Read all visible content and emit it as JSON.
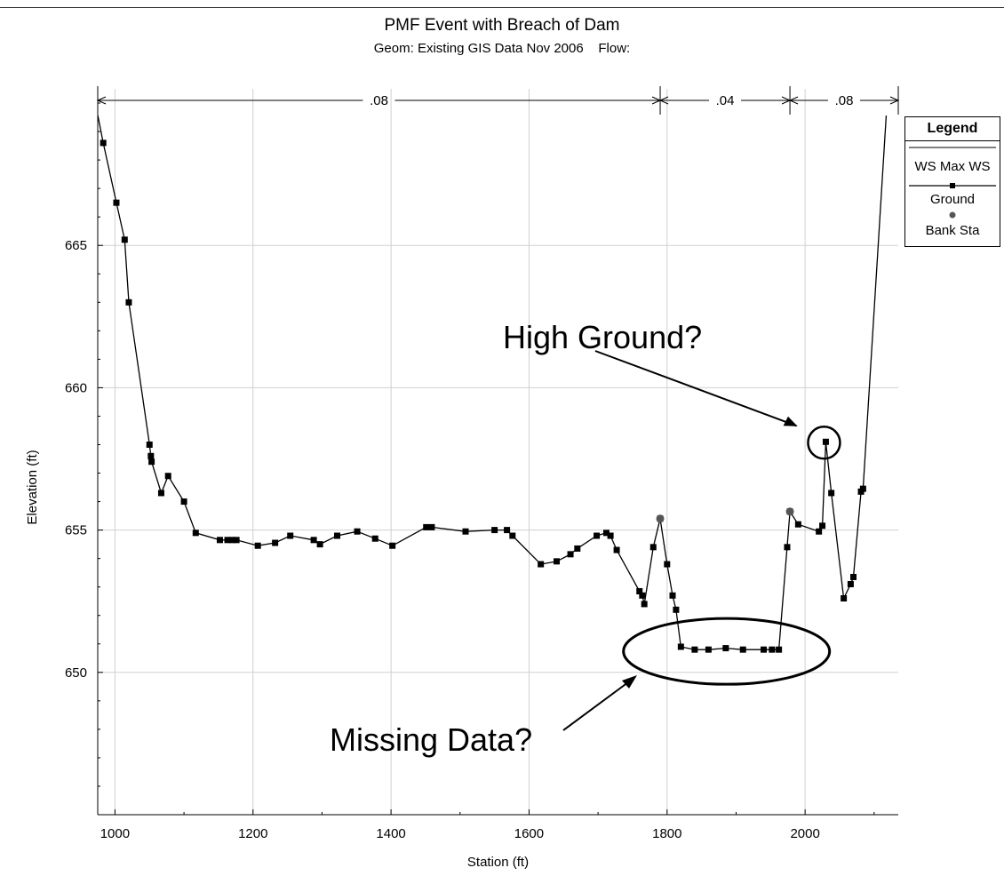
{
  "chart_data": {
    "type": "line",
    "title": "PMF Event with Breach of Dam",
    "subtitle": "Geom: Existing GIS Data Nov 2006    Flow:",
    "xlabel": "Station (ft)",
    "ylabel": "Elevation (ft)",
    "xlim": [
      975,
      2135
    ],
    "ylim": [
      645,
      670.5
    ],
    "xticks": [
      1000,
      1200,
      1400,
      1600,
      1800,
      2000
    ],
    "yticks": [
      650,
      655,
      660,
      665
    ],
    "grid": true,
    "legend_position": "right",
    "legend": {
      "title": "Legend",
      "entries": [
        "WS Max WS",
        "Ground",
        "Bank Sta"
      ]
    },
    "mannings_n": [
      {
        "label": ".08",
        "from": 975,
        "to": 1790
      },
      {
        "label": ".04",
        "from": 1790,
        "to": 1978
      },
      {
        "label": ".08",
        "from": 1978,
        "to": 2135
      }
    ],
    "series": [
      {
        "name": "Ground",
        "x": [
          970,
          983,
          1002,
          1014,
          1020,
          1050,
          1052,
          1053,
          1067,
          1077,
          1100,
          1117,
          1152,
          1163,
          1170,
          1176,
          1207,
          1232,
          1254,
          1288,
          1297,
          1322,
          1351,
          1377,
          1402,
          1451,
          1459,
          1508,
          1550,
          1568,
          1576,
          1617,
          1640,
          1660,
          1670,
          1698,
          1712,
          1718,
          1727,
          1760,
          1764,
          1767,
          1780,
          1790,
          1800,
          1808,
          1813,
          1820,
          1840,
          1860,
          1885,
          1910,
          1940,
          1952,
          1962,
          1974,
          1978,
          1990,
          2020,
          2025,
          2030,
          2038,
          2056,
          2066,
          2070,
          2081,
          2084,
          2120
        ],
        "y": [
          670.2,
          668.6,
          666.5,
          665.2,
          663.0,
          658.0,
          657.6,
          657.4,
          656.3,
          656.9,
          656.0,
          654.9,
          654.65,
          654.65,
          654.65,
          654.65,
          654.45,
          654.55,
          654.8,
          654.65,
          654.5,
          654.8,
          654.95,
          654.7,
          654.45,
          655.1,
          655.1,
          654.95,
          655.0,
          655.0,
          654.8,
          653.8,
          653.9,
          654.15,
          654.35,
          654.8,
          654.9,
          654.8,
          654.3,
          652.85,
          652.7,
          652.4,
          654.4,
          655.4,
          653.8,
          652.7,
          652.2,
          650.9,
          650.8,
          650.8,
          650.85,
          650.8,
          650.8,
          650.8,
          650.8,
          654.4,
          655.65,
          655.2,
          654.95,
          655.15,
          658.1,
          656.3,
          652.6,
          653.1,
          653.35,
          656.35,
          656.45,
          670.5
        ],
        "markers_hidden_at_index": [
          0,
          67
        ]
      },
      {
        "name": "Bank Sta",
        "x": [
          1790,
          1978
        ],
        "y": [
          655.4,
          655.65
        ]
      }
    ],
    "annotations": [
      {
        "text": "High Ground?",
        "points_to": {
          "x": 2030,
          "y": 658.1
        }
      },
      {
        "text": "Missing Data?",
        "points_to": {
          "x": 1890,
          "y": 650.8
        }
      }
    ]
  }
}
